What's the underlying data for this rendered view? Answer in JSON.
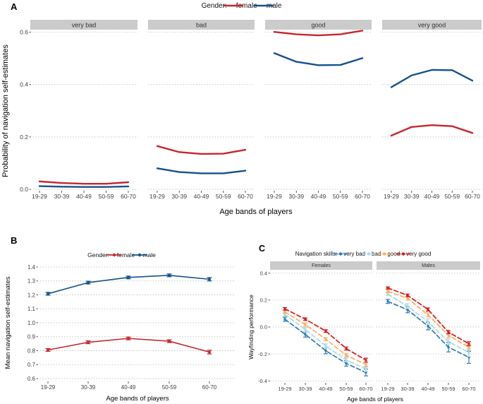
{
  "chart_data": [
    {
      "id": "A",
      "type": "line",
      "panel_label": "A",
      "legend_title": "Gender:",
      "legend_position": "top",
      "xlabel": "Age bands of players",
      "ylabel": "Probability of navigation self-estimates",
      "categories": [
        "19-29",
        "30-39",
        "40-49",
        "50-59",
        "60-70"
      ],
      "yticks": [
        0.0,
        0.2,
        0.4,
        0.6
      ],
      "ytick_labels": [
        "0.0",
        "0.2",
        "0.4",
        "0.6"
      ],
      "ylim": [
        0.0,
        0.62
      ],
      "grid": "dotted",
      "line_style": "solid",
      "facets": [
        {
          "label": "very bad",
          "series": [
            {
              "name": "female",
              "color": "#C5262E",
              "values": [
                0.03,
                0.024,
                0.021,
                0.021,
                0.027
              ]
            },
            {
              "name": "male",
              "color": "#16518B",
              "values": [
                0.012,
                0.01,
                0.009,
                0.009,
                0.011
              ]
            }
          ]
        },
        {
          "label": "bad",
          "series": [
            {
              "name": "female",
              "color": "#C5262E",
              "values": [
                0.165,
                0.142,
                0.135,
                0.136,
                0.151
              ]
            },
            {
              "name": "male",
              "color": "#16518B",
              "values": [
                0.08,
                0.066,
                0.061,
                0.061,
                0.071
              ]
            }
          ]
        },
        {
          "label": "good",
          "series": [
            {
              "name": "female",
              "color": "#C5262E",
              "values": [
                0.601,
                0.592,
                0.588,
                0.592,
                0.606
              ]
            },
            {
              "name": "male",
              "color": "#16518B",
              "values": [
                0.52,
                0.487,
                0.474,
                0.475,
                0.501
              ]
            }
          ]
        },
        {
          "label": "very good",
          "series": [
            {
              "name": "female",
              "color": "#C5262E",
              "values": [
                0.205,
                0.238,
                0.245,
                0.241,
                0.215
              ]
            },
            {
              "name": "male",
              "color": "#16518B",
              "values": [
                0.39,
                0.435,
                0.456,
                0.455,
                0.415
              ]
            }
          ]
        }
      ]
    },
    {
      "id": "B",
      "type": "line",
      "panel_label": "B",
      "legend_title": "Gender:",
      "legend_position": "top",
      "xlabel": "Age bands of players",
      "ylabel": "Mean navigation self-estimates",
      "categories": [
        "19-29",
        "30-39",
        "40-49",
        "50-59",
        "60-70"
      ],
      "yticks": [
        0.6,
        0.7,
        0.8,
        0.9,
        1.0,
        1.1,
        1.2,
        1.3,
        1.4
      ],
      "ytick_labels": [
        "0.6",
        "0.7",
        "0.8",
        "0.9",
        "1.0",
        "1.1",
        "1.2",
        "1.3",
        "1.4"
      ],
      "ylim": [
        0.6,
        1.42
      ],
      "grid": "dotted",
      "line_style": "solid",
      "error_bars": true,
      "facets": [
        {
          "label": null,
          "series": [
            {
              "name": "female",
              "color": "#C5262E",
              "values": [
                0.805,
                0.86,
                0.888,
                0.868,
                0.79
              ],
              "err": [
                0.01,
                0.01,
                0.01,
                0.01,
                0.013
              ]
            },
            {
              "name": "male",
              "color": "#16518B",
              "values": [
                1.208,
                1.288,
                1.325,
                1.34,
                1.312
              ],
              "err": [
                0.01,
                0.01,
                0.01,
                0.01,
                0.012
              ]
            }
          ]
        }
      ]
    },
    {
      "id": "C",
      "type": "line",
      "panel_label": "C",
      "legend_title": "Navigation skills:",
      "legend_position": "top",
      "xlabel": "Age bands of players",
      "ylabel": "Wayfinding performance",
      "categories": [
        "19-29",
        "30-39",
        "40-49",
        "50-59",
        "60-70"
      ],
      "yticks": [
        -0.4,
        -0.2,
        0.0,
        0.2,
        0.4
      ],
      "ytick_labels": [
        "-0.4",
        "-0.2",
        "0.0",
        "0.2",
        "0.4"
      ],
      "ylim": [
        -0.42,
        0.42
      ],
      "grid": "dotted",
      "line_style": "dashed",
      "error_bars": true,
      "facets": [
        {
          "label": "Females",
          "series": [
            {
              "name": "very bad",
              "color": "#2C7BB6",
              "values": [
                0.058,
                -0.055,
                -0.176,
                -0.27,
                -0.338
              ],
              "err": [
                0.015,
                0.02,
                0.022,
                0.02,
                0.025
              ]
            },
            {
              "name": "bad",
              "color": "#ABD9E9",
              "values": [
                0.094,
                -0.019,
                -0.14,
                -0.245,
                -0.31
              ],
              "err": [
                0.012,
                0.015,
                0.015,
                0.015,
                0.02
              ]
            },
            {
              "name": "good",
              "color": "#FDAE61",
              "values": [
                0.112,
                0.018,
                -0.09,
                -0.21,
                -0.278
              ],
              "err": [
                0.01,
                0.012,
                0.012,
                0.012,
                0.018
              ]
            },
            {
              "name": "very good",
              "color": "#D7191C",
              "values": [
                0.135,
                0.058,
                -0.03,
                -0.16,
                -0.246
              ],
              "err": [
                0.01,
                0.01,
                0.01,
                0.012,
                0.015
              ]
            }
          ]
        },
        {
          "label": "Males",
          "series": [
            {
              "name": "very bad",
              "color": "#2C7BB6",
              "values": [
                0.19,
                0.128,
                0.007,
                -0.15,
                -0.225
              ],
              "err": [
                0.015,
                0.022,
                0.028,
                0.035,
                0.045
              ]
            },
            {
              "name": "bad",
              "color": "#ABD9E9",
              "values": [
                0.245,
                0.155,
                0.04,
                -0.108,
                -0.19
              ],
              "err": [
                0.012,
                0.018,
                0.02,
                0.02,
                0.03
              ]
            },
            {
              "name": "good",
              "color": "#FDAE61",
              "values": [
                0.265,
                0.213,
                0.09,
                -0.062,
                -0.15
              ],
              "err": [
                0.01,
                0.014,
                0.015,
                0.015,
                0.02
              ]
            },
            {
              "name": "very good",
              "color": "#D7191C",
              "values": [
                0.29,
                0.235,
                0.13,
                -0.038,
                -0.124
              ],
              "err": [
                0.008,
                0.01,
                0.012,
                0.012,
                0.015
              ]
            }
          ]
        }
      ]
    }
  ]
}
